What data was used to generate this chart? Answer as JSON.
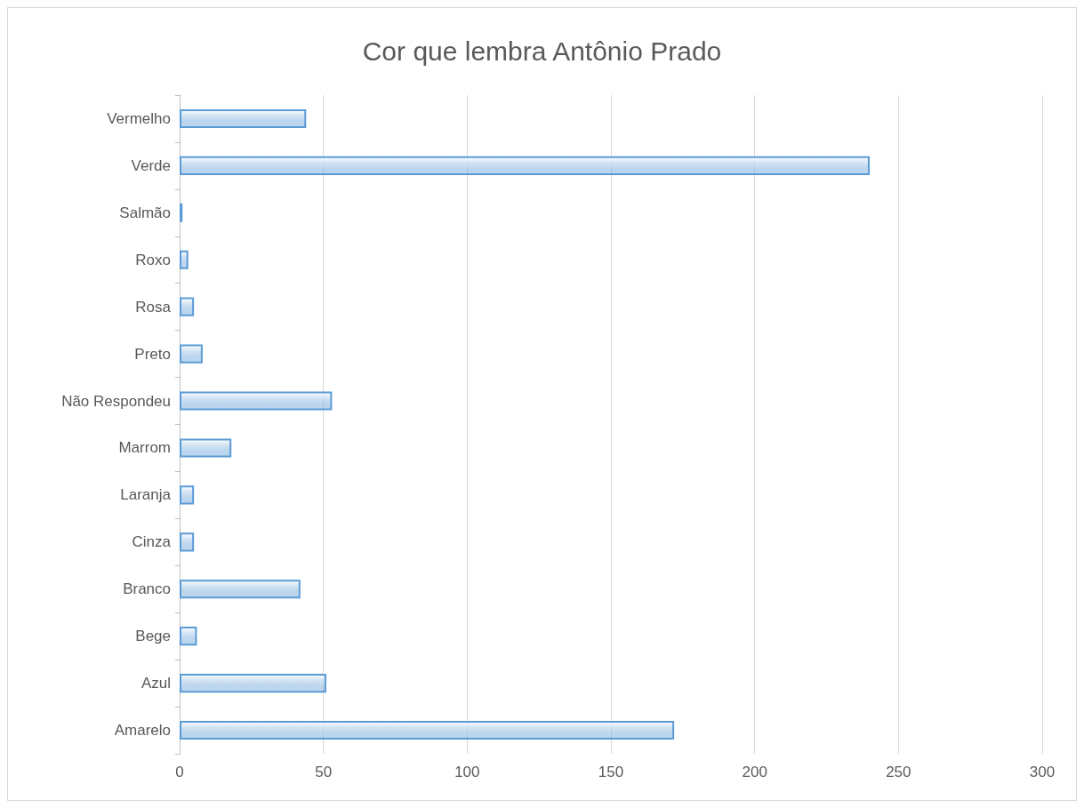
{
  "chart_data": {
    "type": "bar",
    "orientation": "horizontal",
    "title": "Cor que lembra Antônio Prado",
    "categories": [
      "Vermelho",
      "Verde",
      "Salmão",
      "Roxo",
      "Rosa",
      "Preto",
      "Não Respondeu",
      "Marrom",
      "Laranja",
      "Cinza",
      "Branco",
      "Bege",
      "Azul",
      "Amarelo"
    ],
    "values": [
      44,
      240,
      1,
      3,
      5,
      8,
      53,
      18,
      5,
      5,
      42,
      6,
      51,
      172
    ],
    "color": "#5b9bd5",
    "xlim": [
      0,
      300
    ],
    "xticks": [
      0,
      50,
      100,
      150,
      200,
      250,
      300
    ],
    "grid": "x"
  }
}
